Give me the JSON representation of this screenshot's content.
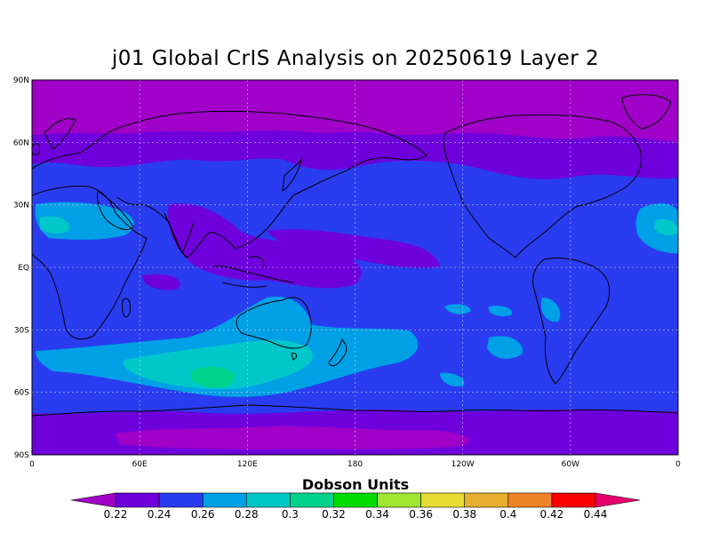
{
  "title": "j01 Global CrIS Analysis on 20250619 Layer 2",
  "map": {
    "projection": "cylindrical-equidistant",
    "lon_range": [
      0,
      360
    ],
    "lat_range": [
      -90,
      90
    ],
    "lat_ticks": [
      "90N",
      "60N",
      "30N",
      "EQ",
      "30S",
      "60S",
      "90S"
    ],
    "lon_ticks": [
      "0",
      "60E",
      "120E",
      "180",
      "120W",
      "60W",
      "0"
    ],
    "grid": true,
    "features": [
      "coastlines",
      "continents",
      "antarctica"
    ]
  },
  "colorbar": {
    "title": "Dobson Units",
    "labels": [
      "0.22",
      "0.24",
      "0.26",
      "0.28",
      "0.3",
      "0.32",
      "0.34",
      "0.36",
      "0.38",
      "0.4",
      "0.42",
      "0.44"
    ],
    "colors": [
      "#a000c8",
      "#6e00dc",
      "#2a3cf0",
      "#00a0e6",
      "#00c8c8",
      "#00d28c",
      "#00dc00",
      "#a0e632",
      "#e6dc32",
      "#e6af2d",
      "#f08228",
      "#fa0000",
      "#e6006e"
    ]
  },
  "field_colors": {
    "polar": "#a000c8",
    "low": "#6e00dc",
    "base": "#2a3cf0",
    "mid": "#00a0e6",
    "high": "#00c8c8",
    "peak": "#00d28c",
    "land_line": "#000000"
  }
}
